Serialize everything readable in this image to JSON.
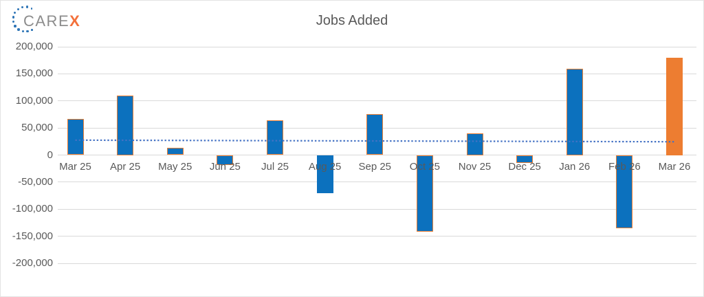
{
  "logo": {
    "brand_gray": "CARE",
    "brand_accent": "X",
    "dot_color": "#2E75B6",
    "gray_color": "#8C8C8C",
    "accent_color": "#F3703A"
  },
  "chart_data": {
    "type": "bar",
    "title": "Jobs Added",
    "xlabel": "",
    "ylabel": "",
    "categories": [
      "Mar 25",
      "Apr 25",
      "May 25",
      "Jun 25",
      "Jul 25",
      "Aug 25",
      "Sep 25",
      "Oct 25",
      "Nov 25",
      "Dec 25",
      "Jan 26",
      "Feb 26",
      "Mar 26"
    ],
    "values": [
      67000,
      110000,
      13000,
      -18000,
      64000,
      -70000,
      76000,
      -142000,
      40000,
      -15000,
      160000,
      -135000,
      180000
    ],
    "ylim": [
      -200000,
      200000
    ],
    "y_tick_step": 50000,
    "y_tick_values": [
      200000,
      150000,
      100000,
      50000,
      0,
      -50000,
      -100000,
      -150000,
      -200000
    ],
    "y_tick_labels": [
      "200,000",
      "150,000",
      "100,000",
      "50,000",
      "0",
      "-50,000",
      "-100,000",
      "-150,000",
      "-200,000"
    ],
    "grid": true,
    "legend": "none",
    "highlight_category": "Mar 26",
    "borderless_category": "Aug 25",
    "trendline": {
      "style": "dotted",
      "start_value": 27500,
      "end_value": 24500,
      "color": "#4472C4"
    },
    "colors": {
      "bar_fill": "#0C71BE",
      "bar_border": "#ED7D31",
      "highlight_fill": "#ED7D31",
      "gridline": "#D9D9D9",
      "axis_text": "#595959",
      "title_text": "#595959"
    }
  }
}
